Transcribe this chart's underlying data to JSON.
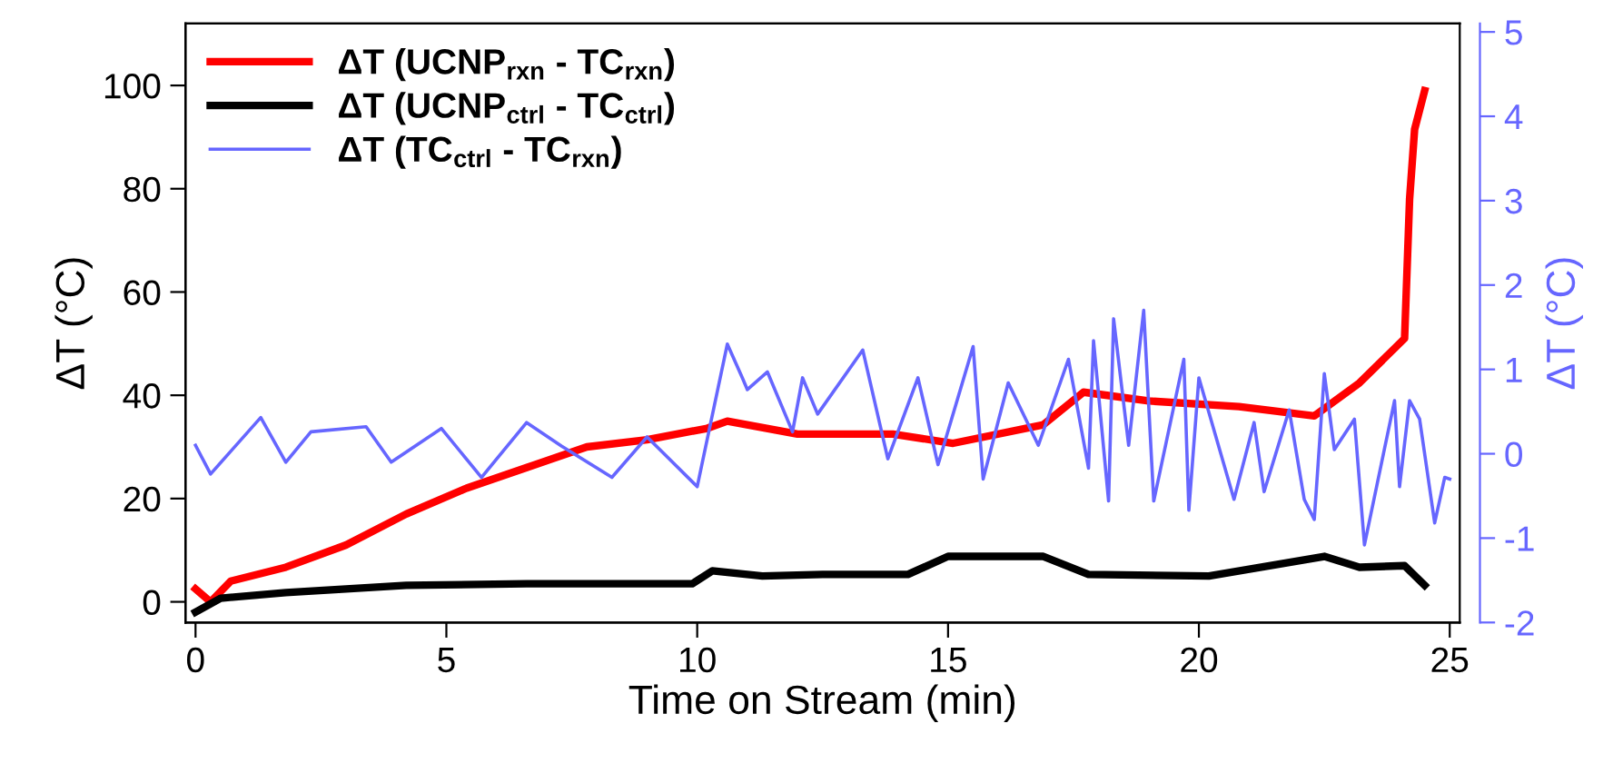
{
  "chart_data": {
    "type": "line",
    "xlabel": "Time on Stream (min)",
    "ylabel": "ΔT (°C)",
    "y2label": "ΔT (°C)",
    "xlim": [
      -0.2,
      25.2
    ],
    "xticks": [
      0,
      5,
      10,
      15,
      20,
      25
    ],
    "ylim": [
      -4,
      112
    ],
    "yticks": [
      0,
      20,
      40,
      60,
      80,
      100
    ],
    "y2lim": [
      -2,
      5.1
    ],
    "y2ticks": [
      -2,
      -1,
      0,
      1,
      2,
      3,
      4,
      5
    ],
    "grid": false,
    "legend": "top left",
    "marker": "none",
    "line_style": "solid",
    "series": [
      {
        "name": "ΔT (UCNP$_{rxn}$ - TC$_{rxn}$)",
        "color": "#ff0000",
        "x": [
          0,
          0.3,
          0.7,
          1.8,
          3.0,
          4.2,
          5.4,
          6.6,
          7.8,
          9.0,
          10.2,
          10.6,
          12.0,
          13.9,
          15.1,
          16.9,
          17.7,
          19.0,
          20.8,
          22.3,
          23.2,
          24.1,
          24.2,
          24.3,
          24.5
        ],
        "values": [
          2.5,
          0,
          4,
          6.7,
          11,
          17,
          22,
          26,
          30,
          31.4,
          33.6,
          35,
          32.5,
          32.5,
          30.7,
          34.3,
          40.6,
          38.9,
          37.8,
          36,
          42.4,
          51,
          78,
          91.5,
          99
        ]
      },
      {
        "name": "ΔT (UCNP$_{ctrl}$ - TC$_{ctrl}$)",
        "color": "#000000",
        "x": [
          0,
          0.5,
          1.8,
          4.2,
          6.6,
          9.9,
          10.3,
          11.3,
          12.5,
          14.2,
          15.0,
          16.0,
          16.9,
          17.8,
          20.2,
          22.5,
          23.2,
          24.1,
          24.5
        ],
        "values": [
          -2,
          0.7,
          1.8,
          3.2,
          3.5,
          3.5,
          6,
          5,
          5.3,
          5.3,
          8.8,
          8.8,
          8.8,
          5.3,
          5,
          8.8,
          6.7,
          7,
          3.2
        ]
      },
      {
        "name": "ΔT (TC$_{ctrl}$ - TC$_{rxn}$)",
        "color": "#6666ff",
        "axis": "y2",
        "x": [
          0,
          0.3,
          1.3,
          1.8,
          2.3,
          3.4,
          3.9,
          4.9,
          5.7,
          6.6,
          7.3,
          8.3,
          9.0,
          10.0,
          10.6,
          10.9,
          11.0,
          11.4,
          11.9,
          12.1,
          12.4,
          13.3,
          13.8,
          14.4,
          14.8,
          15.5,
          15.7,
          16.2,
          16.8,
          17.4,
          17.8,
          17.9,
          18.2,
          18.3,
          18.6,
          18.9,
          19.1,
          19.7,
          19.8,
          20.0,
          20.7,
          21.1,
          21.3,
          21.8,
          22.1,
          22.3,
          22.5,
          22.7,
          23.1,
          23.3,
          23.9,
          24.0,
          24.2,
          24.4,
          24.7,
          24.9,
          25.0
        ],
        "values": [
          0.1,
          -0.24,
          0.43,
          -0.1,
          0.26,
          0.32,
          -0.1,
          0.3,
          -0.28,
          0.37,
          0.09,
          -0.28,
          0.2,
          -0.39,
          1.3,
          0.9,
          0.76,
          0.97,
          0.26,
          0.9,
          0.47,
          1.23,
          -0.06,
          0.9,
          -0.13,
          1.27,
          -0.3,
          0.84,
          0.1,
          1.12,
          -0.17,
          1.34,
          -0.56,
          1.6,
          0.1,
          1.7,
          -0.56,
          1.12,
          -0.67,
          0.9,
          -0.54,
          0.37,
          -0.45,
          0.52,
          -0.54,
          -0.78,
          0.95,
          0.05,
          0.41,
          -1.08,
          0.63,
          -0.39,
          0.63,
          0.41,
          -0.82,
          -0.28,
          -0.3
        ]
      }
    ]
  }
}
